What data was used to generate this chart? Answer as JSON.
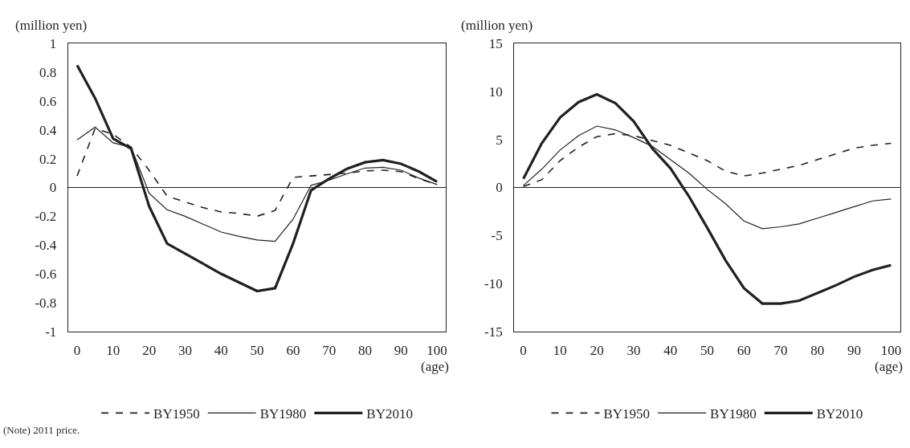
{
  "chart_data": [
    {
      "type": "line",
      "xlabel": "(age)",
      "ylabel": "(million yen)",
      "x": [
        0,
        5,
        10,
        15,
        20,
        25,
        30,
        35,
        40,
        45,
        50,
        55,
        60,
        65,
        70,
        75,
        80,
        85,
        90,
        95,
        100
      ],
      "xlim": [
        -2.5,
        102.5
      ],
      "xticks": [
        0,
        10,
        20,
        30,
        40,
        50,
        60,
        70,
        80,
        90,
        100
      ],
      "ylim": [
        -1,
        1
      ],
      "yticks": [
        -1,
        -0.8,
        -0.6,
        -0.4,
        -0.2,
        0,
        0.2,
        0.4,
        0.6,
        0.8,
        1
      ],
      "ref_lines": [
        {
          "axis": "y",
          "value": 0
        }
      ],
      "legend": "bottom",
      "annotations": [
        "(Note) 2011 price."
      ],
      "series": [
        {
          "name": "BY1950",
          "color": "#231f20",
          "line_style": "dashed",
          "values": [
            0.08,
            0.41,
            0.37,
            0.28,
            0.12,
            -0.06,
            -0.1,
            -0.14,
            -0.17,
            -0.18,
            -0.2,
            -0.16,
            0.07,
            0.08,
            0.09,
            0.1,
            0.115,
            0.12,
            0.11,
            0.06,
            0.02
          ]
        },
        {
          "name": "BY1980",
          "color": "#231f20",
          "line_style": "solid",
          "values": [
            0.33,
            0.42,
            0.31,
            0.28,
            -0.04,
            -0.155,
            -0.2,
            -0.255,
            -0.31,
            -0.34,
            -0.365,
            -0.375,
            -0.22,
            0.015,
            0.05,
            0.095,
            0.135,
            0.14,
            0.12,
            0.065,
            0.02
          ]
        },
        {
          "name": "BY2010",
          "color": "#231f20",
          "line_style": "solid",
          "values": [
            0.85,
            0.62,
            0.34,
            0.27,
            -0.13,
            -0.39,
            -0.46,
            -0.53,
            -0.6,
            -0.66,
            -0.72,
            -0.7,
            -0.39,
            -0.02,
            0.06,
            0.13,
            0.175,
            0.19,
            0.165,
            0.11,
            0.04
          ]
        }
      ]
    },
    {
      "type": "line",
      "xlabel": "(age)",
      "ylabel": "(million yen)",
      "x": [
        0,
        5,
        10,
        15,
        20,
        25,
        30,
        35,
        40,
        45,
        50,
        55,
        60,
        65,
        70,
        75,
        80,
        85,
        90,
        95,
        100
      ],
      "xlim": [
        -2.5,
        102.5
      ],
      "xticks": [
        0,
        10,
        20,
        30,
        40,
        50,
        60,
        70,
        80,
        90,
        100
      ],
      "ylim": [
        -15,
        15
      ],
      "yticks": [
        -15,
        -10,
        -5,
        0,
        5,
        10,
        15
      ],
      "ref_lines": [
        {
          "axis": "y",
          "value": 0
        }
      ],
      "legend": "bottom",
      "series": [
        {
          "name": "BY1950",
          "color": "#231f20",
          "line_style": "dashed",
          "values": [
            0.1,
            0.8,
            2.8,
            4.2,
            5.3,
            5.6,
            5.4,
            4.9,
            4.4,
            3.6,
            2.8,
            1.7,
            1.2,
            1.5,
            1.9,
            2.3,
            2.9,
            3.5,
            4.1,
            4.4,
            4.6
          ]
        },
        {
          "name": "BY1980",
          "color": "#231f20",
          "line_style": "solid",
          "values": [
            0.2,
            1.9,
            3.9,
            5.4,
            6.4,
            6.0,
            5.2,
            4.3,
            2.9,
            1.5,
            -0.2,
            -1.7,
            -3.5,
            -4.3,
            -4.1,
            -3.8,
            -3.2,
            -2.6,
            -2.0,
            -1.4,
            -1.2
          ]
        },
        {
          "name": "BY2010",
          "color": "#231f20",
          "line_style": "solid",
          "values": [
            0.9,
            4.6,
            7.3,
            8.9,
            9.7,
            8.8,
            6.9,
            4.1,
            2.0,
            -0.9,
            -4.2,
            -7.6,
            -10.5,
            -12.1,
            -12.1,
            -11.8,
            -11.0,
            -10.2,
            -9.3,
            -8.6,
            -8.1
          ]
        }
      ]
    }
  ]
}
